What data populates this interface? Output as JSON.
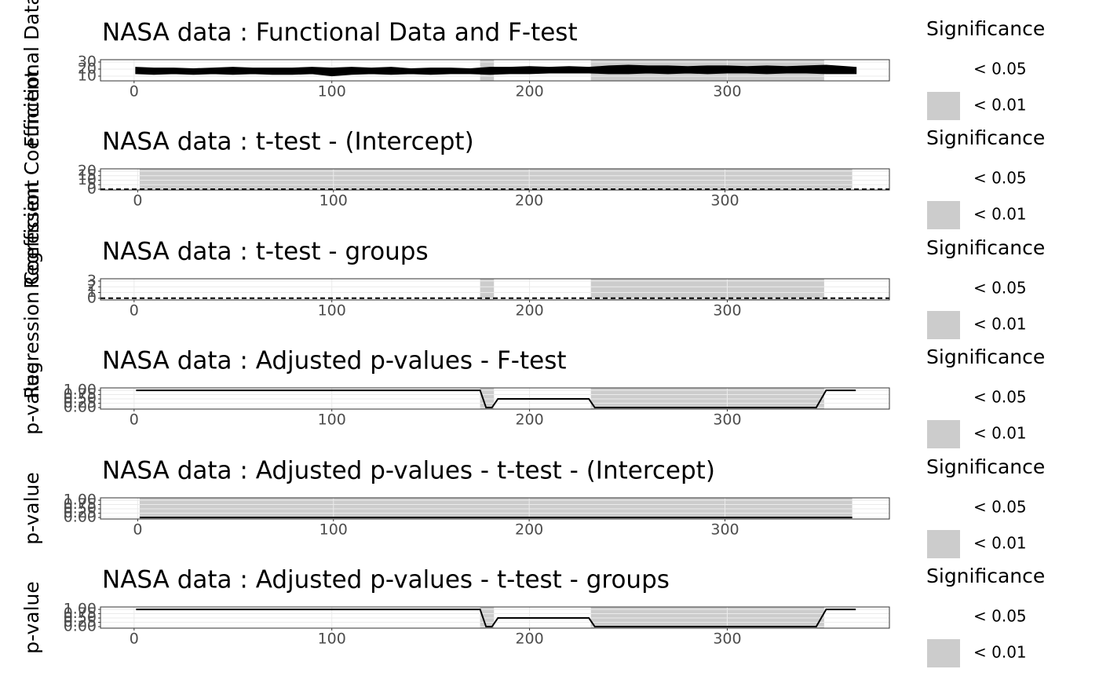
{
  "chart_data": [
    {
      "type": "band",
      "title": "NASA data : Functional Data and F-test",
      "y_label": "Functional Data",
      "x": [
        1,
        10,
        20,
        30,
        40,
        50,
        60,
        70,
        80,
        90,
        100,
        110,
        120,
        130,
        140,
        150,
        160,
        170,
        180,
        190,
        200,
        210,
        220,
        230,
        240,
        250,
        260,
        270,
        280,
        290,
        300,
        310,
        320,
        330,
        340,
        350,
        360,
        365
      ],
      "lower": [
        14,
        13,
        14,
        13,
        14,
        13,
        14,
        13,
        13,
        14,
        11,
        13,
        14,
        13,
        14,
        13,
        14,
        14,
        13,
        14,
        14,
        15,
        15,
        15,
        14,
        14,
        15,
        14,
        15,
        14,
        15,
        15,
        14,
        15,
        15,
        14,
        14,
        14
      ],
      "upper": [
        22,
        21,
        21,
        20,
        21,
        22,
        21,
        21,
        21,
        22,
        21,
        22,
        21,
        22,
        20,
        21,
        21,
        20,
        22,
        22,
        23,
        22,
        23,
        22,
        24,
        25,
        24,
        24,
        23,
        24,
        24,
        23,
        24,
        23,
        24,
        25,
        23,
        22
      ],
      "color": "#000000",
      "shaded": [
        [
          175,
          182
        ],
        [
          231,
          349
        ]
      ],
      "shade_color": "#cccccc",
      "xlim": [
        -17,
        382
      ],
      "xticks": [
        0,
        100,
        200,
        300
      ],
      "ylim": [
        3.3,
        33.3
      ],
      "yticks": [
        10,
        20,
        30
      ],
      "grid": true,
      "legend": {
        "title": "Significance",
        "labels": [
          "< 0.05",
          "< 0.01"
        ],
        "colors": [
          "#ffffff",
          "#cccccc"
        ]
      }
    },
    {
      "type": "line",
      "title": "NASA data : t-test - (Intercept)",
      "y_label": "Regression Coefficient",
      "hline": 0,
      "color": "#000000",
      "shaded": [
        [
          1,
          365
        ]
      ],
      "shade_color": "#cccccc",
      "xlim": [
        -19,
        384
      ],
      "xticks": [
        0,
        100,
        200,
        300
      ],
      "ylim": [
        -0.9,
        22.6
      ],
      "yticks": [
        0,
        5,
        10,
        15,
        20
      ],
      "grid": true,
      "legend": {
        "title": "Significance",
        "labels": [
          "< 0.05",
          "< 0.01"
        ],
        "colors": [
          "#ffffff",
          "#cccccc"
        ]
      }
    },
    {
      "type": "line",
      "title": "NASA data : t-test - groups",
      "y_label": "Regression Coefficient",
      "hline": 0,
      "color": "#000000",
      "shaded": [
        [
          175,
          182
        ],
        [
          231,
          349
        ]
      ],
      "shade_color": "#cccccc",
      "xlim": [
        -17,
        382
      ],
      "xticks": [
        0,
        100,
        200,
        300
      ],
      "ylim": [
        -0.3,
        3.4
      ],
      "yticks": [
        0,
        1,
        2,
        3
      ],
      "grid": true,
      "legend": {
        "title": "Significance",
        "labels": [
          "< 0.05",
          "< 0.01"
        ],
        "colors": [
          "#ffffff",
          "#cccccc"
        ]
      }
    },
    {
      "type": "line",
      "title": "NASA data : Adjusted p-values - F-test",
      "y_label": "p-value",
      "x": [
        1,
        175,
        178,
        181,
        184,
        230,
        233,
        345,
        350,
        365
      ],
      "values": [
        1,
        1,
        0,
        0,
        0.5,
        0.5,
        0,
        0,
        1,
        1
      ],
      "color": "#000000",
      "shaded": [
        [
          175,
          182
        ],
        [
          231,
          349
        ]
      ],
      "shade_color": "#cccccc",
      "xlim": [
        -17,
        382
      ],
      "xticks": [
        0,
        100,
        200,
        300
      ],
      "ylim": [
        -0.09,
        1.14
      ],
      "yticks": [
        {
          "value": 0,
          "label": "0.00"
        },
        {
          "value": 0.25,
          "label": "0.25"
        },
        {
          "value": 0.5,
          "label": "0.50"
        },
        {
          "value": 0.75,
          "label": "0.75"
        },
        {
          "value": 1,
          "label": "1.00"
        }
      ],
      "grid": true,
      "legend": {
        "title": "Significance",
        "labels": [
          "< 0.05",
          "< 0.01"
        ],
        "colors": [
          "#ffffff",
          "#cccccc"
        ]
      }
    },
    {
      "type": "line",
      "title": "NASA data : Adjusted p-values - t-test - (Intercept)",
      "y_label": "p-value",
      "x": [
        1,
        365
      ],
      "values": [
        0,
        0
      ],
      "color": "#000000",
      "shaded": [
        [
          1,
          365
        ]
      ],
      "shade_color": "#cccccc",
      "xlim": [
        -19,
        384
      ],
      "xticks": [
        0,
        100,
        200,
        300
      ],
      "ylim": [
        -0.09,
        1.14
      ],
      "yticks": [
        {
          "value": 0,
          "label": "0.00"
        },
        {
          "value": 0.25,
          "label": "0.25"
        },
        {
          "value": 0.5,
          "label": "0.50"
        },
        {
          "value": 0.75,
          "label": "0.75"
        },
        {
          "value": 1,
          "label": "1.00"
        }
      ],
      "grid": true,
      "legend": {
        "title": "Significance",
        "labels": [
          "< 0.05",
          "< 0.01"
        ],
        "colors": [
          "#ffffff",
          "#cccccc"
        ]
      }
    },
    {
      "type": "line",
      "title": "NASA data : Adjusted p-values - t-test - groups",
      "y_label": "p-value",
      "x": [
        1,
        175,
        178,
        181,
        184,
        230,
        233,
        345,
        350,
        365
      ],
      "values": [
        1,
        1,
        0,
        0,
        0.5,
        0.5,
        0,
        0,
        1,
        1
      ],
      "color": "#000000",
      "shaded": [
        [
          175,
          182
        ],
        [
          231,
          349
        ]
      ],
      "shade_color": "#cccccc",
      "xlim": [
        -17,
        382
      ],
      "xticks": [
        0,
        100,
        200,
        300
      ],
      "ylim": [
        -0.09,
        1.14
      ],
      "yticks": [
        {
          "value": 0,
          "label": "0.00"
        },
        {
          "value": 0.25,
          "label": "0.25"
        },
        {
          "value": 0.5,
          "label": "0.50"
        },
        {
          "value": 0.75,
          "label": "0.75"
        },
        {
          "value": 1,
          "label": "1.00"
        }
      ],
      "grid": true,
      "legend": {
        "title": "Significance",
        "labels": [
          "< 0.05",
          "< 0.01"
        ],
        "colors": [
          "#ffffff",
          "#cccccc"
        ]
      }
    }
  ]
}
